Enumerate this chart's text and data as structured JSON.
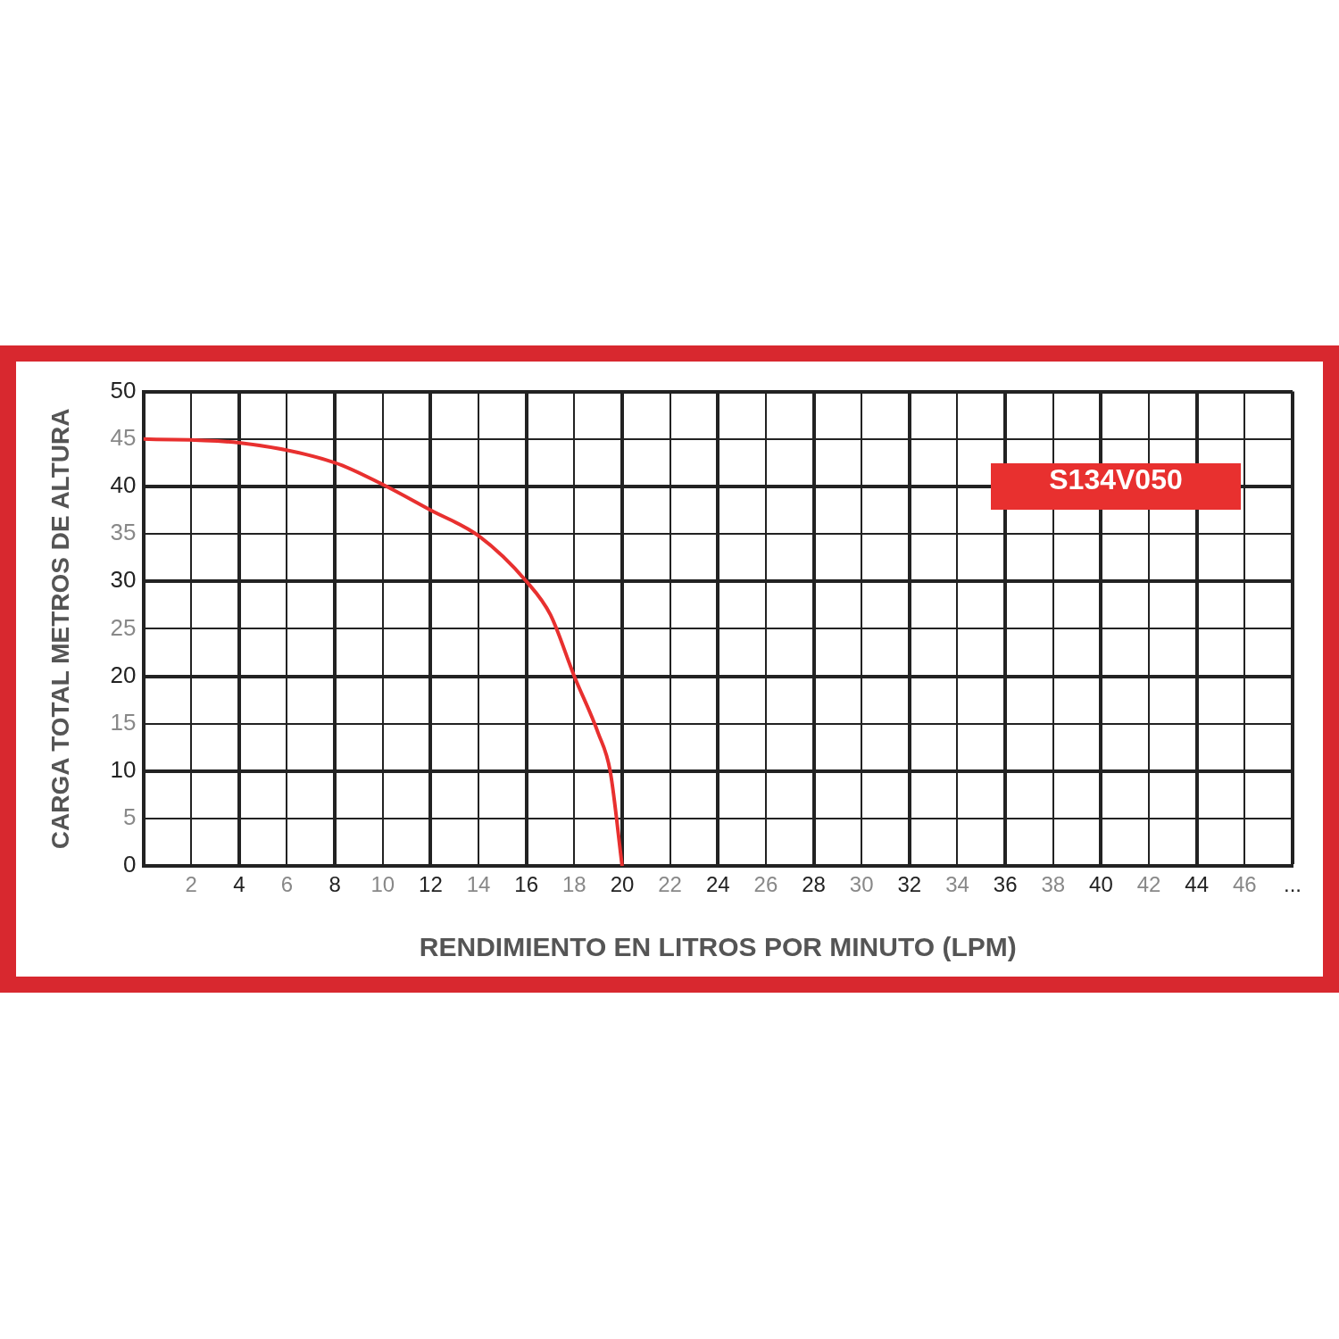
{
  "chart_data": {
    "type": "line",
    "xlabel": "RENDIMIENTO EN LITROS POR MINUTO (LPM)",
    "ylabel": "CARGA TOTAL METROS DE ALTURA",
    "x": [
      0,
      4,
      8,
      10,
      12,
      14,
      16,
      17,
      18,
      19,
      19.5,
      20
    ],
    "series": [
      {
        "name": "S134V050",
        "color": "#e8302f",
        "values": [
          45,
          44.6,
          42.5,
          40.2,
          37.5,
          34.8,
          30,
          26.5,
          20,
          14,
          10,
          0
        ]
      }
    ],
    "xlim": [
      0,
      48
    ],
    "xticks": [
      2,
      4,
      6,
      8,
      10,
      12,
      14,
      16,
      18,
      20,
      22,
      24,
      26,
      28,
      30,
      32,
      34,
      36,
      38,
      40,
      42,
      44,
      46,
      {
        "value": 48,
        "label": "..."
      }
    ],
    "ylim": [
      0,
      50
    ],
    "yticks": [
      0,
      5,
      10,
      15,
      20,
      25,
      30,
      35,
      40,
      45,
      50
    ],
    "grid": true,
    "legend": "top right",
    "marker": "none",
    "line_style": "solid"
  }
}
